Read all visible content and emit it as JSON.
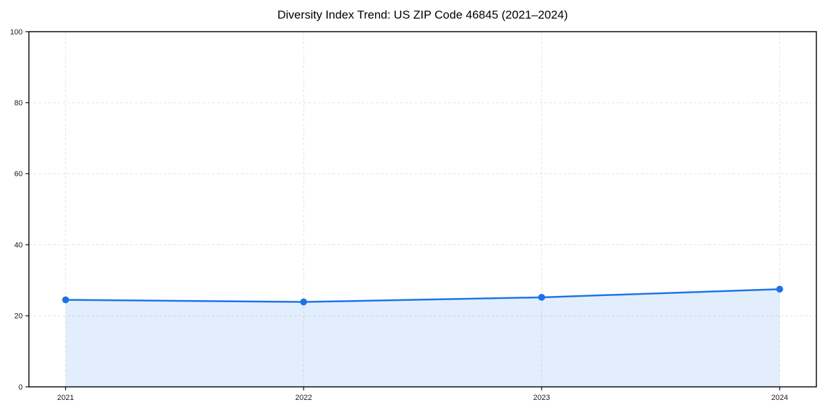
{
  "title": "Diversity Index Trend: US ZIP Code 46845 (2021–2024)",
  "colors": {
    "background": "#ffffff",
    "line": "#1a73e8",
    "marker": "#1a73e8",
    "fill_opacity": 0.12,
    "grid": "#e3e3e3",
    "spine": "#1a1a1a",
    "tick_text": "#1a1a1a",
    "title_text": "#000000"
  },
  "chart_data": {
    "type": "line",
    "title": "Diversity Index Trend: US ZIP Code 46845 (2021–2024)",
    "x": [
      2021,
      2022,
      2023,
      2024
    ],
    "xticks": [
      "2021",
      "2022",
      "2023",
      "2024"
    ],
    "series": [
      {
        "name": "Diversity Index",
        "values": [
          24.5,
          23.9,
          25.2,
          27.5
        ]
      }
    ],
    "xlabel": "",
    "ylabel": "",
    "ylim": [
      0,
      100
    ],
    "yticks": [
      0,
      20,
      40,
      60,
      80,
      100
    ],
    "grid": true,
    "grid_style": "dashed",
    "legend": "none",
    "markers": true,
    "area_fill": true
  }
}
